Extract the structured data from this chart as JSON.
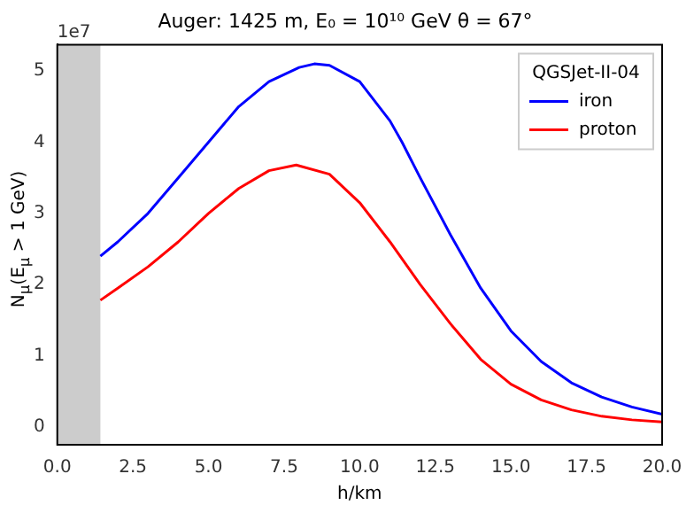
{
  "chart_data": {
    "type": "line",
    "title": "Auger: 1425 m, E₀ = 10¹⁰ GeV θ = 67°",
    "xlabel": "h/km",
    "ylabel": "N$_{μ}$(E$_{μ}$ > 1 GeV)",
    "legend_title": "QGSJet-II-04",
    "annotations": [
      "1e7"
    ],
    "series": [
      {
        "name": "iron",
        "color": "#0000ff",
        "x": [
          1.425,
          2,
          3,
          4,
          5,
          6,
          7,
          8,
          8.5,
          9,
          10,
          11,
          11.4,
          12,
          13,
          14,
          15,
          16,
          17,
          18,
          19,
          20
        ],
        "values": [
          2.4,
          2.6,
          3.0,
          3.5,
          4.0,
          4.5,
          4.85,
          5.05,
          5.1,
          5.08,
          4.85,
          4.3,
          4.0,
          3.5,
          2.7,
          1.95,
          1.35,
          0.92,
          0.62,
          0.42,
          0.28,
          0.18
        ]
      },
      {
        "name": "proton",
        "color": "#ff0000",
        "x": [
          1.425,
          2,
          3,
          4,
          5,
          6,
          7,
          7.9,
          9,
          10,
          11,
          12,
          13,
          14,
          15,
          16,
          17,
          18,
          19,
          20
        ],
        "values": [
          1.78,
          1.95,
          2.25,
          2.6,
          3.0,
          3.35,
          3.6,
          3.68,
          3.55,
          3.15,
          2.6,
          2.0,
          1.45,
          0.95,
          0.6,
          0.38,
          0.24,
          0.15,
          0.1,
          0.07
        ]
      }
    ],
    "bands": [
      {
        "axis": "x",
        "from": 0,
        "to": 1.425,
        "color": "#cccccc"
      }
    ],
    "xlim": [
      0,
      20
    ],
    "xticks": [
      {
        "value": 0,
        "label": "0.0"
      },
      {
        "value": 2.5,
        "label": "2.5"
      },
      {
        "value": 5,
        "label": "5.0"
      },
      {
        "value": 7.5,
        "label": "7.5"
      },
      {
        "value": 10,
        "label": "10.0"
      },
      {
        "value": 12.5,
        "label": "12.5"
      },
      {
        "value": 15,
        "label": "15.0"
      },
      {
        "value": 17.5,
        "label": "17.5"
      },
      {
        "value": 20,
        "label": "20.0"
      }
    ],
    "ylim": [
      -0.25,
      5.37
    ],
    "yticks": [
      0,
      1,
      2,
      3,
      4,
      5
    ],
    "grid": false,
    "legend": "top right",
    "marker": "none",
    "line_style": "solid"
  }
}
